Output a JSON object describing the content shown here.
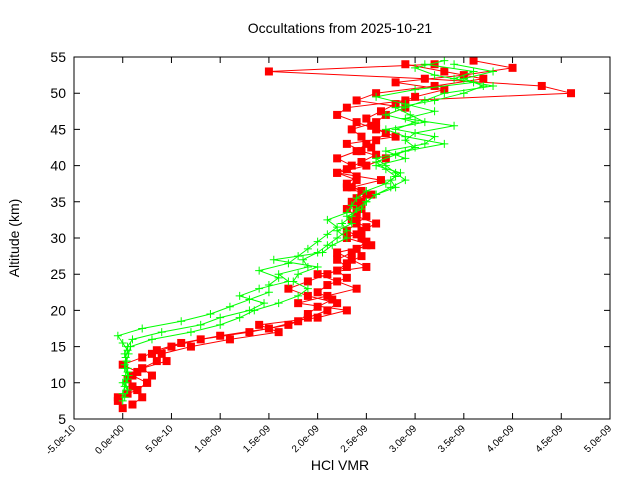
{
  "chart_data": {
    "type": "line",
    "title": "Occultations from 2025-10-21",
    "xlabel": "HCl VMR",
    "ylabel": "Altitude (km)",
    "xlim": [
      -5e-10,
      5e-09
    ],
    "ylim": [
      5,
      55
    ],
    "xticks": [
      "-5.0e-10",
      "0.0e+00",
      "5.0e-10",
      "1.0e-09",
      "1.5e-09",
      "2.0e-09",
      "2.5e-09",
      "3.0e-09",
      "3.5e-09",
      "4.0e-09",
      "4.5e-09",
      "5.0e-09"
    ],
    "yticks": [
      "5",
      "10",
      "15",
      "20",
      "25",
      "30",
      "35",
      "40",
      "45",
      "50",
      "55"
    ],
    "grid": false,
    "x_unit_scale": 1e-09,
    "colors": {
      "red_series": "#ff0000",
      "green_series": "#00ff00"
    },
    "series": [
      {
        "color": "#ff0000",
        "marker": "square",
        "altitude": [
          6.5,
          7.5,
          8.5,
          9.5,
          10.5,
          11.5,
          12.5,
          13.5,
          14.5,
          15.5,
          16.5,
          17.5,
          18.5,
          19.5,
          20.5,
          21.5,
          22.5,
          23.5,
          24.5,
          25.5,
          26.5,
          27.5,
          28.5,
          29.5,
          30.5,
          31.5,
          32.5,
          33.5,
          34.5,
          35.5,
          36.5,
          37.5,
          38.5,
          39.5,
          40.5,
          41.5,
          42.5,
          43.5,
          44.5,
          45.5,
          46.5,
          47.5,
          48.5,
          49.5,
          50.5,
          51.5,
          52.5,
          53.5,
          54.5
        ],
        "vmr": [
          0.0,
          -0.05,
          0.05,
          0.1,
          0.05,
          0.15,
          0.0,
          0.2,
          0.35,
          0.6,
          1.0,
          1.5,
          1.8,
          1.9,
          2.0,
          2.15,
          2.0,
          2.1,
          2.3,
          2.2,
          2.3,
          2.45,
          2.4,
          2.5,
          2.4,
          2.5,
          2.35,
          2.4,
          2.4,
          2.4,
          2.45,
          2.3,
          2.4,
          2.3,
          2.45,
          2.6,
          2.55,
          2.6,
          2.7,
          2.55,
          2.5,
          2.65,
          2.8,
          3.0,
          3.3,
          2.8,
          3.5,
          4.0,
          3.6
        ]
      },
      {
        "color": "#ff0000",
        "marker": "square",
        "altitude": [
          7.0,
          8.0,
          9.0,
          10.0,
          11.0,
          12.0,
          13.0,
          14.0,
          15.0,
          16.0,
          17.0,
          18.0,
          19.0,
          20.0,
          21.0,
          22.0,
          23.0,
          24.0,
          25.0,
          26.0,
          27.0,
          28.0,
          29.0,
          30.0,
          31.0,
          32.0,
          33.0,
          34.0,
          35.0,
          36.0,
          37.0,
          38.0,
          39.0,
          40.0,
          41.0,
          42.0,
          43.0,
          44.0,
          45.0,
          46.0,
          47.0,
          48.0,
          49.0,
          50.0,
          51.0,
          52.0,
          53.0,
          54.0
        ],
        "vmr": [
          0.1,
          0.2,
          0.15,
          0.25,
          0.3,
          0.2,
          0.35,
          0.3,
          0.5,
          0.8,
          1.3,
          1.7,
          1.9,
          2.1,
          2.2,
          1.9,
          1.7,
          1.9,
          2.1,
          2.3,
          2.2,
          2.35,
          2.5,
          2.45,
          2.3,
          2.4,
          2.5,
          2.45,
          2.35,
          2.5,
          2.3,
          2.4,
          2.2,
          2.35,
          2.2,
          2.4,
          2.5,
          2.45,
          2.35,
          2.6,
          2.7,
          2.9,
          2.4,
          2.6,
          3.2,
          3.7,
          3.3,
          2.9
        ]
      },
      {
        "color": "#ff0000",
        "marker": "square",
        "altitude": [
          8.0,
          9.0,
          10.0,
          11.0,
          12.0,
          13.0,
          14.0,
          15.0,
          16.0,
          17.0,
          18.0,
          19.0,
          20.0,
          21.0,
          22.0,
          23.0,
          24.0,
          25.0,
          26.0,
          27.0,
          28.0,
          29.0,
          30.0,
          31.0,
          32.0,
          33.0,
          34.0,
          35.0,
          36.0,
          37.0,
          38.0,
          39.0,
          40.0,
          41.0,
          42.0,
          43.0,
          44.0,
          45.0,
          46.0,
          47.0,
          48.0,
          49.0,
          50.0,
          51.0,
          52.0,
          53.0,
          54.0
        ],
        "vmr": [
          -0.05,
          0.15,
          0.25,
          0.1,
          0.2,
          0.45,
          0.4,
          0.7,
          1.1,
          1.6,
          1.4,
          2.0,
          2.3,
          1.8,
          2.1,
          2.4,
          2.2,
          2.0,
          2.5,
          2.35,
          2.2,
          2.55,
          2.3,
          2.45,
          2.6,
          2.4,
          2.3,
          2.45,
          2.55,
          2.35,
          2.65,
          2.2,
          2.5,
          2.7,
          2.45,
          2.3,
          2.8,
          2.6,
          2.4,
          2.2,
          2.3,
          2.9,
          4.6,
          4.3,
          3.1,
          1.5,
          3.2
        ]
      },
      {
        "color": "#00ff00",
        "marker": "plus",
        "altitude": [
          7.5,
          8.5,
          9.5,
          10.5,
          11.5,
          12.5,
          13.5,
          14.5,
          15.5,
          16.5,
          17.5,
          18.5,
          19.5,
          20.5,
          21.5,
          22.5,
          23.5,
          24.5,
          25.5,
          26.5,
          27.5,
          28.5,
          29.5,
          30.5,
          31.5,
          32.5,
          33.5,
          34.5,
          35.5,
          36.5,
          37.5,
          38.5,
          39.5,
          40.5,
          41.5,
          42.5,
          43.5,
          44.5,
          45.5,
          46.5,
          47.5,
          48.5,
          49.5,
          50.5,
          51.5,
          52.5,
          53.5,
          54.5
        ],
        "vmr": [
          0.0,
          0.0,
          0.02,
          0.05,
          0.05,
          0.02,
          0.03,
          0.05,
          0.0,
          -0.05,
          0.2,
          0.6,
          0.9,
          1.1,
          1.3,
          1.5,
          1.5,
          1.6,
          1.4,
          1.7,
          1.8,
          1.9,
          2.0,
          2.1,
          2.2,
          2.1,
          2.3,
          2.35,
          2.4,
          2.5,
          2.7,
          2.8,
          2.7,
          2.6,
          2.8,
          3.0,
          2.9,
          3.0,
          3.4,
          2.9,
          3.2,
          2.9,
          2.6,
          3.0,
          3.6,
          3.2,
          3.0,
          3.3
        ]
      },
      {
        "color": "#00ff00",
        "marker": "plus",
        "altitude": [
          8.0,
          9.0,
          10.0,
          11.0,
          12.0,
          13.0,
          14.0,
          15.0,
          16.0,
          17.0,
          18.0,
          19.0,
          20.0,
          21.0,
          22.0,
          23.0,
          24.0,
          25.0,
          26.0,
          27.0,
          28.0,
          29.0,
          30.0,
          31.0,
          32.0,
          33.0,
          34.0,
          35.0,
          36.0,
          37.0,
          38.0,
          39.0,
          40.0,
          41.0,
          42.0,
          43.0,
          44.0,
          45.0,
          46.0,
          47.0,
          48.0,
          49.0,
          50.0,
          51.0,
          52.0,
          53.0,
          54.0
        ],
        "vmr": [
          0.02,
          0.05,
          0.0,
          0.03,
          0.05,
          0.04,
          0.02,
          0.05,
          0.1,
          0.4,
          0.8,
          1.0,
          1.3,
          1.45,
          1.2,
          1.4,
          1.7,
          1.6,
          1.9,
          1.85,
          2.0,
          2.1,
          2.2,
          2.3,
          2.25,
          2.35,
          2.4,
          2.5,
          2.6,
          2.8,
          2.75,
          2.85,
          2.6,
          2.9,
          2.7,
          3.1,
          3.2,
          2.8,
          3.0,
          2.7,
          2.9,
          3.1,
          3.3,
          3.8,
          3.4,
          3.6,
          3.1
        ]
      },
      {
        "color": "#00ff00",
        "marker": "plus",
        "altitude": [
          9.0,
          10.0,
          11.0,
          12.0,
          13.0,
          14.0,
          15.0,
          16.0,
          17.0,
          18.0,
          19.0,
          20.0,
          21.0,
          22.0,
          23.0,
          24.0,
          25.0,
          26.0,
          27.0,
          28.0,
          29.0,
          30.0,
          31.0,
          32.0,
          33.0,
          34.0,
          35.0,
          36.0,
          37.0,
          38.0,
          39.0,
          40.0,
          41.0,
          42.0,
          43.0,
          44.0,
          45.0,
          46.0,
          47.0,
          48.0,
          49.0,
          50.0,
          51.0,
          52.0,
          53.0,
          54.0
        ],
        "vmr": [
          0.05,
          0.03,
          0.06,
          0.02,
          0.04,
          0.06,
          0.08,
          0.3,
          0.7,
          1.0,
          1.2,
          1.35,
          1.6,
          1.8,
          1.9,
          1.75,
          1.8,
          2.0,
          1.55,
          2.05,
          2.15,
          2.3,
          2.2,
          2.35,
          2.3,
          2.45,
          2.5,
          2.6,
          2.75,
          2.9,
          2.8,
          2.7,
          2.6,
          2.9,
          3.3,
          2.9,
          2.7,
          3.1,
          2.95,
          2.8,
          3.2,
          3.5,
          3.7,
          3.5,
          3.8,
          3.4
        ]
      }
    ]
  }
}
